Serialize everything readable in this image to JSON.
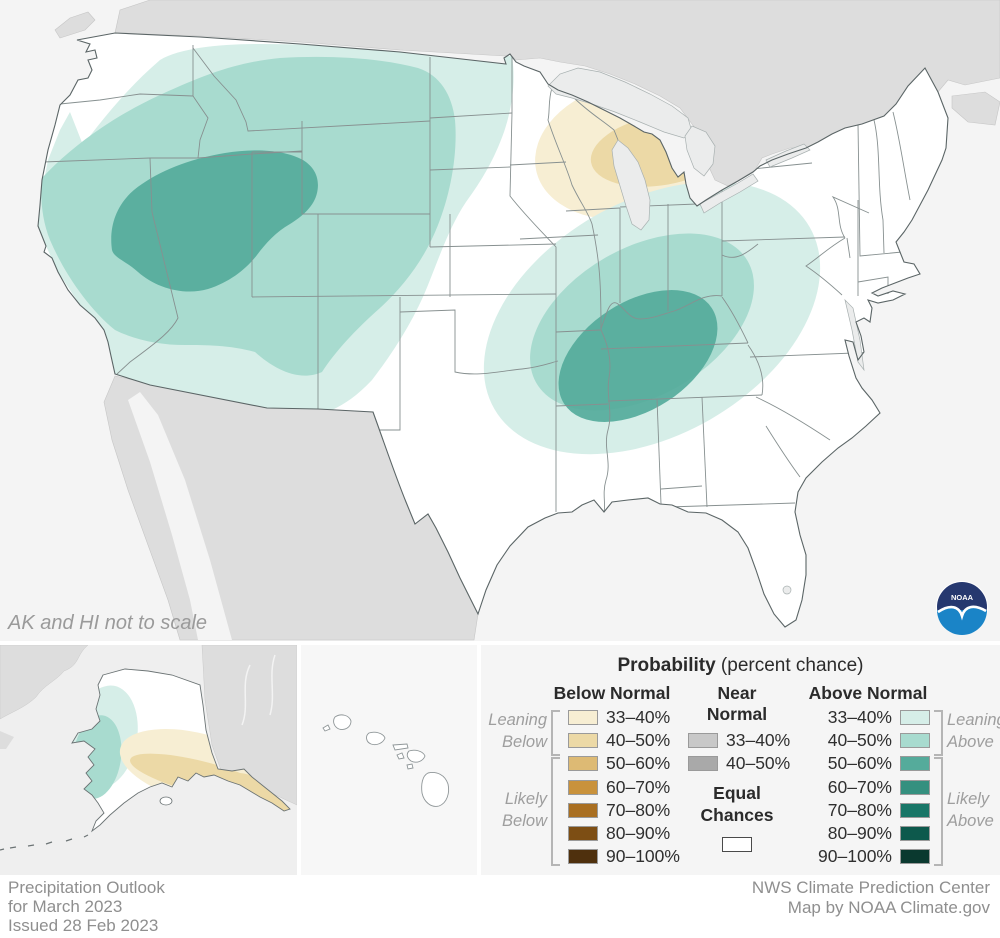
{
  "map": {
    "scale_note": "AK and HI not to scale",
    "noaa_logo_text": "NOAA",
    "regions": [
      {
        "area": "Great Basin / interior West core",
        "category": "Above Normal",
        "probability": "50–60%"
      },
      {
        "area": "West Coast, Rockies, northern Plains",
        "category": "Above Normal",
        "probability": "33–50%"
      },
      {
        "area": "Mid-Mississippi / Ohio & Tennessee Valley core",
        "category": "Above Normal",
        "probability": "50–60%"
      },
      {
        "area": "Mid-South and Ohio Valley surroundings",
        "category": "Above Normal",
        "probability": "33–50%"
      },
      {
        "area": "Upper Great Lakes (Wisconsin / Michigan)",
        "category": "Below Normal",
        "probability": "33–50%"
      },
      {
        "area": "Western Alaska",
        "category": "Above Normal",
        "probability": "33–50%"
      },
      {
        "area": "Southern Alaska coast and Panhandle",
        "category": "Below Normal",
        "probability": "33–50%"
      },
      {
        "area": "Remainder of CONUS and Hawaii",
        "category": "Equal Chances",
        "probability": ""
      }
    ]
  },
  "legend": {
    "title_bold": "Probability",
    "title_rest": " (percent chance)",
    "columns": {
      "below": {
        "header": "Below Normal",
        "rows": [
          {
            "label": "33–40%",
            "color": "#f7eed3"
          },
          {
            "label": "40–50%",
            "color": "#ecd9a6"
          },
          {
            "label": "50–60%",
            "color": "#ddba74"
          },
          {
            "label": "60–70%",
            "color": "#c9923c"
          },
          {
            "label": "70–80%",
            "color": "#a96f21"
          },
          {
            "label": "80–90%",
            "color": "#7d4e14"
          },
          {
            "label": "90–100%",
            "color": "#4f300d"
          }
        ]
      },
      "near": {
        "header_line1": "Near",
        "header_line2": "Normal",
        "rows": [
          {
            "label": "33–40%",
            "color": "#c8c8c8"
          },
          {
            "label": "40–50%",
            "color": "#a9a9a9"
          }
        ]
      },
      "above": {
        "header": "Above Normal",
        "rows": [
          {
            "label": "33–40%",
            "color": "#d6eee8"
          },
          {
            "label": "40–50%",
            "color": "#a8dbcf"
          },
          {
            "label": "50–60%",
            "color": "#55ab9b"
          },
          {
            "label": "60–70%",
            "color": "#35907f"
          },
          {
            "label": "70–80%",
            "color": "#197667"
          },
          {
            "label": "80–90%",
            "color": "#0d594c"
          },
          {
            "label": "90–100%",
            "color": "#0a392f"
          }
        ]
      }
    },
    "equal_chances": {
      "label_line1": "Equal",
      "label_line2": "Chances",
      "color": "#ffffff"
    },
    "brackets": {
      "leaning_below": [
        "Leaning",
        "Below"
      ],
      "likely_below": [
        "Likely",
        "Below"
      ],
      "leaning_above": [
        "Leaning",
        "Above"
      ],
      "likely_above": [
        "Likely",
        "Above"
      ]
    }
  },
  "footer": {
    "left": [
      "Precipitation Outlook",
      "for March 2023",
      "Issued 28 Feb 2023"
    ],
    "right": [
      "NWS Climate Prediction Center",
      "Map by NOAA Climate.gov"
    ]
  }
}
